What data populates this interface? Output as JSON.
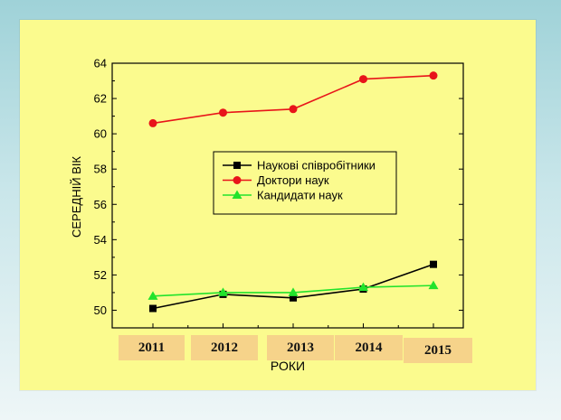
{
  "chart_data": {
    "type": "line",
    "xlabel": "РОКИ",
    "ylabel": "СЕРЕДНІЙ ВІК",
    "ylim": [
      49,
      64
    ],
    "y_ticks": [
      50,
      52,
      54,
      56,
      58,
      60,
      62,
      64
    ],
    "categories": [
      "2011",
      "2012",
      "2013",
      "2014",
      "2015"
    ],
    "series": [
      {
        "name": "Наукові співробітники",
        "color": "#000000",
        "marker": "square",
        "values": [
          50.1,
          50.9,
          50.7,
          51.2,
          52.6
        ]
      },
      {
        "name": "Доктори наук",
        "color": "#e8141a",
        "marker": "circle",
        "values": [
          60.6,
          61.2,
          61.4,
          63.1,
          63.3
        ]
      },
      {
        "name": "Кандидати наук",
        "color": "#22e32b",
        "marker": "triangle",
        "values": [
          50.8,
          51.0,
          51.0,
          51.3,
          51.4
        ]
      }
    ],
    "legend_position": "center-right",
    "grid": false
  },
  "colors": {
    "panel_background": "#fbfb8e",
    "year_label_background": "#f6d38a"
  }
}
